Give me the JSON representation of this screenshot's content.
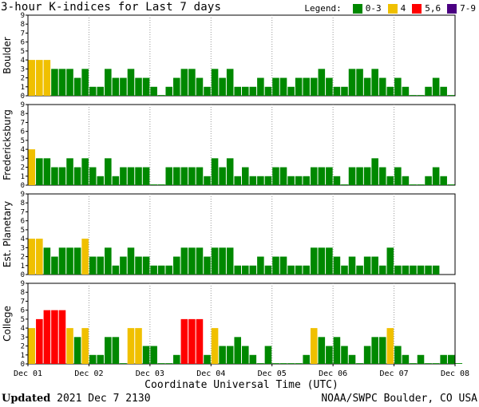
{
  "title": "3-hour K-indices for Last 7 days",
  "legend": {
    "label": "Legend:",
    "items": [
      {
        "label": "0-3",
        "color": "#008800"
      },
      {
        "label": "4",
        "color": "#f0c000"
      },
      {
        "label": "5,6",
        "color": "#ff0000"
      },
      {
        "label": "7-9",
        "color": "#4b0082"
      }
    ]
  },
  "footer": {
    "updated_label": "Updated",
    "updated_value": "2021 Dec  7 2130",
    "credit": "NOAA/SWPC Boulder, CO USA"
  },
  "chart_data": {
    "type": "bar",
    "xlabel": "Coordinate Universal Time (UTC)",
    "x_ticks": [
      "Dec 01",
      "Dec 02",
      "Dec 03",
      "Dec 04",
      "Dec 05",
      "Dec 06",
      "Dec 07",
      "Dec 08"
    ],
    "ylim": [
      0,
      9
    ],
    "y_ticks": [
      0,
      1,
      2,
      3,
      4,
      5,
      6,
      7,
      8,
      9
    ],
    "bins_per_day": 8,
    "color_scale": {
      "0-3": "#008800",
      "4": "#f0c000",
      "5-6": "#ff0000",
      "7-9": "#4b0082"
    },
    "panels": [
      {
        "name": "Boulder",
        "values": [
          4,
          4,
          4,
          3,
          3,
          3,
          2,
          3,
          1,
          1,
          3,
          2,
          2,
          3,
          2,
          2,
          1,
          0,
          1,
          2,
          3,
          3,
          2,
          1,
          3,
          2,
          3,
          1,
          1,
          1,
          2,
          1,
          2,
          2,
          1,
          2,
          2,
          2,
          3,
          2,
          1,
          1,
          3,
          3,
          2,
          3,
          2,
          1,
          2,
          1,
          0,
          0,
          1,
          2,
          1,
          0
        ]
      },
      {
        "name": "Fredericksburg",
        "values": [
          4,
          3,
          3,
          2,
          2,
          3,
          2,
          3,
          2,
          1,
          3,
          1,
          2,
          2,
          2,
          2,
          0,
          0,
          2,
          2,
          2,
          2,
          2,
          1,
          3,
          2,
          3,
          1,
          2,
          1,
          1,
          1,
          2,
          2,
          1,
          1,
          1,
          2,
          2,
          2,
          1,
          0,
          2,
          2,
          2,
          3,
          2,
          1,
          2,
          1,
          0,
          0,
          1,
          2,
          1,
          0
        ]
      },
      {
        "name": "Est. Planetary",
        "values": [
          4,
          4,
          3,
          2,
          3,
          3,
          3,
          4,
          2,
          2,
          3,
          1,
          2,
          3,
          2,
          2,
          1,
          1,
          1,
          2,
          3,
          3,
          3,
          2,
          3,
          3,
          3,
          1,
          1,
          1,
          2,
          1,
          2,
          2,
          1,
          1,
          1,
          3,
          3,
          3,
          2,
          1,
          2,
          1,
          2,
          2,
          1,
          3,
          1,
          1,
          1,
          1,
          1,
          1
        ]
      },
      {
        "name": "College",
        "values": [
          4,
          5,
          6,
          6,
          6,
          4,
          3,
          4,
          1,
          1,
          3,
          3,
          0,
          4,
          4,
          2,
          2,
          0,
          0,
          1,
          5,
          5,
          5,
          1,
          4,
          2,
          2,
          3,
          2,
          1,
          0,
          2,
          0,
          0,
          0,
          0,
          1,
          4,
          3,
          2,
          3,
          2,
          1,
          0,
          2,
          3,
          3,
          4,
          2,
          1,
          0,
          1,
          0,
          0,
          1,
          1,
          0
        ]
      }
    ]
  }
}
